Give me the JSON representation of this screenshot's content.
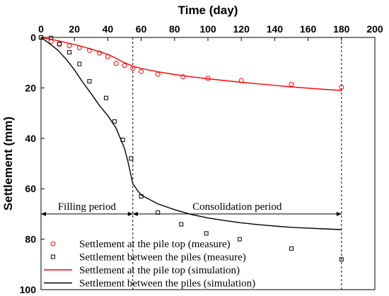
{
  "chart_data": {
    "type": "line",
    "xlabel": "Time (day)",
    "ylabel": "Settlement (mm)",
    "xlim": [
      0,
      200
    ],
    "ylim": [
      0,
      100
    ],
    "y_inverted": true,
    "x_axis_position": "top",
    "x_ticks": [
      0,
      20,
      40,
      60,
      80,
      100,
      120,
      140,
      160,
      180,
      200
    ],
    "y_ticks": [
      0,
      20,
      40,
      60,
      80,
      100
    ],
    "grid": false,
    "legend_position": "bottom-left",
    "series": [
      {
        "name": "Settlement at the pile top (measure)",
        "style": "circle-markers",
        "color": "#ff0000",
        "x": [
          0,
          6,
          11,
          17,
          23,
          29,
          35,
          40,
          45,
          50,
          55,
          60,
          70,
          85,
          100,
          120,
          150,
          180
        ],
        "y": [
          0,
          1.6,
          2.7,
          3.3,
          4.1,
          5.1,
          6.2,
          7.6,
          10.3,
          11.1,
          12.3,
          13.5,
          14.6,
          15.6,
          16.2,
          17.1,
          18.6,
          19.7
        ]
      },
      {
        "name": "Settlement between the piles (measure)",
        "style": "square-markers",
        "color": "#000000",
        "x": [
          0,
          6,
          11,
          17,
          23,
          29,
          39,
          44,
          49,
          54,
          60,
          70,
          84,
          99,
          119,
          150,
          180
        ],
        "y": [
          0,
          0.2,
          2.6,
          5.9,
          10.5,
          17.4,
          24.0,
          33.3,
          40.6,
          48.0,
          63.0,
          69.4,
          74.1,
          77.7,
          80.0,
          83.7,
          88.0
        ]
      },
      {
        "name": "Settlement at the pile top (simulation)",
        "style": "line",
        "color": "#ff0000",
        "x": [
          0,
          10,
          20,
          30,
          40,
          45,
          50,
          55,
          60,
          70,
          80,
          90,
          100,
          110,
          120,
          130,
          140,
          150,
          160,
          170,
          180
        ],
        "y": [
          0,
          1.3,
          2.8,
          4.6,
          6.7,
          8.3,
          10.0,
          11.4,
          12.3,
          13.6,
          14.7,
          15.6,
          16.4,
          17.1,
          17.8,
          18.4,
          19.0,
          19.6,
          20.1,
          20.6,
          21.0
        ]
      },
      {
        "name": "Settlement between the piles (simulation)",
        "style": "line",
        "color": "#000000",
        "x": [
          0,
          5,
          10,
          15,
          20,
          25,
          30,
          35,
          40,
          45,
          50,
          52,
          54,
          55,
          58,
          60,
          70,
          80,
          90,
          100,
          110,
          120,
          130,
          140,
          150,
          160,
          170,
          180
        ],
        "y": [
          0,
          2.4,
          5.0,
          8.6,
          12.8,
          17.8,
          22.2,
          27.0,
          31.0,
          36.0,
          44.0,
          49.0,
          55.0,
          58.0,
          60.8,
          62.5,
          66.0,
          68.3,
          70.2,
          71.6,
          72.6,
          73.5,
          74.2,
          74.8,
          75.3,
          75.6,
          75.9,
          76.2
        ]
      }
    ],
    "vlines": [
      55,
      180
    ],
    "periods": [
      {
        "label": "Filling period",
        "from": 0,
        "to": 55,
        "y": 70
      },
      {
        "label": "Consolidation period",
        "from": 55,
        "to": 180,
        "y": 70
      }
    ]
  }
}
